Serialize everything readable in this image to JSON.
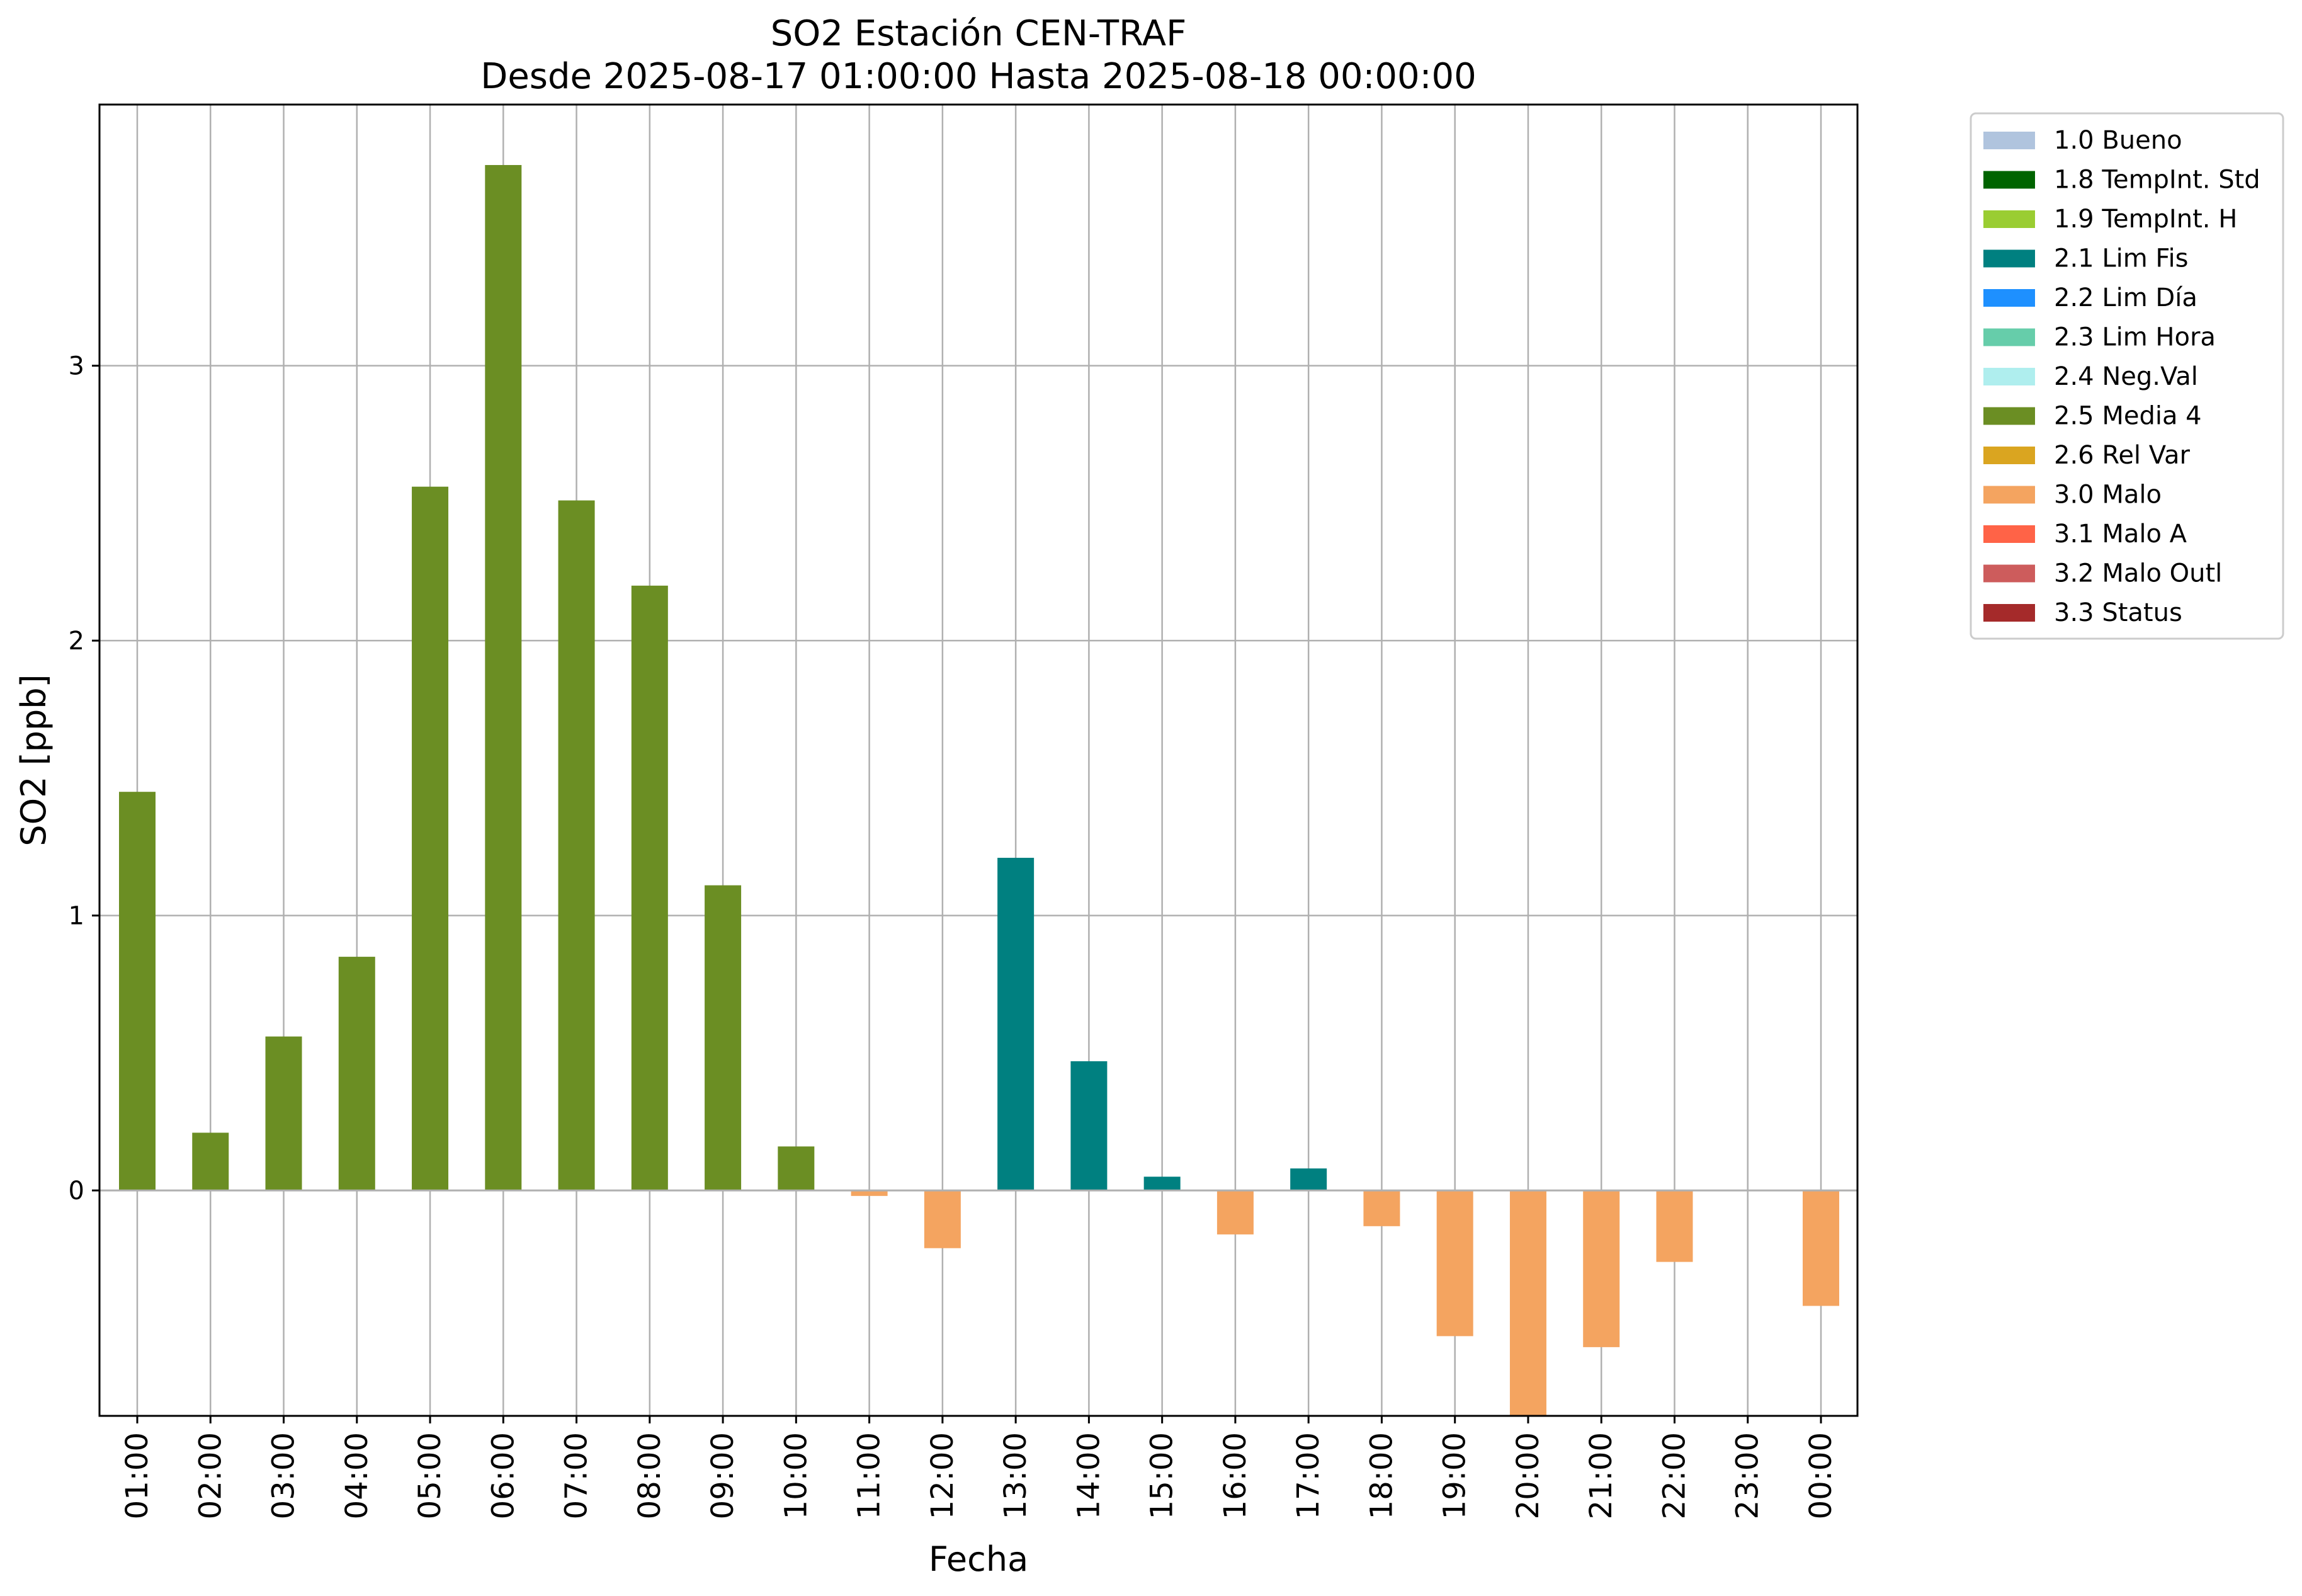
{
  "chart_data": {
    "type": "bar",
    "title": "SO2 Estación CEN-TRAF",
    "subtitle": "Desde 2025-08-17 01:00:00 Hasta 2025-08-18 00:00:00",
    "xlabel": "Fecha",
    "ylabel": "SO2 [ppb]",
    "ylim": [
      -0.82,
      3.95
    ],
    "yticks": [
      0,
      1,
      2,
      3
    ],
    "grid": true,
    "legend_position": "outside-top-right",
    "categories": [
      "01:00",
      "02:00",
      "03:00",
      "04:00",
      "05:00",
      "06:00",
      "07:00",
      "08:00",
      "09:00",
      "10:00",
      "11:00",
      "12:00",
      "13:00",
      "14:00",
      "15:00",
      "16:00",
      "17:00",
      "18:00",
      "19:00",
      "20:00",
      "21:00",
      "22:00",
      "23:00",
      "00:00"
    ],
    "values": [
      1.45,
      0.21,
      0.56,
      0.85,
      2.56,
      3.73,
      2.51,
      2.2,
      1.11,
      0.16,
      -0.02,
      -0.21,
      1.21,
      0.47,
      0.05,
      -0.16,
      0.08,
      -0.13,
      -0.53,
      -0.82,
      -0.57,
      -0.26,
      null,
      -0.42
    ],
    "value_flags": [
      "2.5 Media 4",
      "2.5 Media 4",
      "2.5 Media 4",
      "2.5 Media 4",
      "2.5 Media 4",
      "2.5 Media 4",
      "2.5 Media 4",
      "2.5 Media 4",
      "2.5 Media 4",
      "2.5 Media 4",
      "3.0 Malo",
      "3.0 Malo",
      "2.1 Lim Fis",
      "2.1 Lim Fis",
      "2.1 Lim Fis",
      "3.0 Malo",
      "2.1 Lim Fis",
      "3.0 Malo",
      "3.0 Malo",
      "3.0 Malo",
      "3.0 Malo",
      "3.0 Malo",
      null,
      "3.0 Malo"
    ],
    "legend": [
      {
        "label": "1.0 Bueno",
        "color": "#b0c4de"
      },
      {
        "label": "1.8 TempInt. Std",
        "color": "#006400"
      },
      {
        "label": "1.9 TempInt. H",
        "color": "#9acd32"
      },
      {
        "label": "2.1 Lim Fis",
        "color": "#008080"
      },
      {
        "label": "2.2 Lim Día",
        "color": "#1e90ff"
      },
      {
        "label": "2.3 Lim Hora",
        "color": "#66cdaa"
      },
      {
        "label": "2.4 Neg.Val",
        "color": "#afeeee"
      },
      {
        "label": "2.5 Media 4",
        "color": "#6b8e23"
      },
      {
        "label": "2.6 Rel Var",
        "color": "#daa520"
      },
      {
        "label": "3.0 Malo",
        "color": "#f4a460"
      },
      {
        "label": "3.1 Malo A",
        "color": "#ff6347"
      },
      {
        "label": "3.2 Malo Outl",
        "color": "#cd5c5c"
      },
      {
        "label": "3.3 Status",
        "color": "#a52a2a"
      }
    ]
  }
}
